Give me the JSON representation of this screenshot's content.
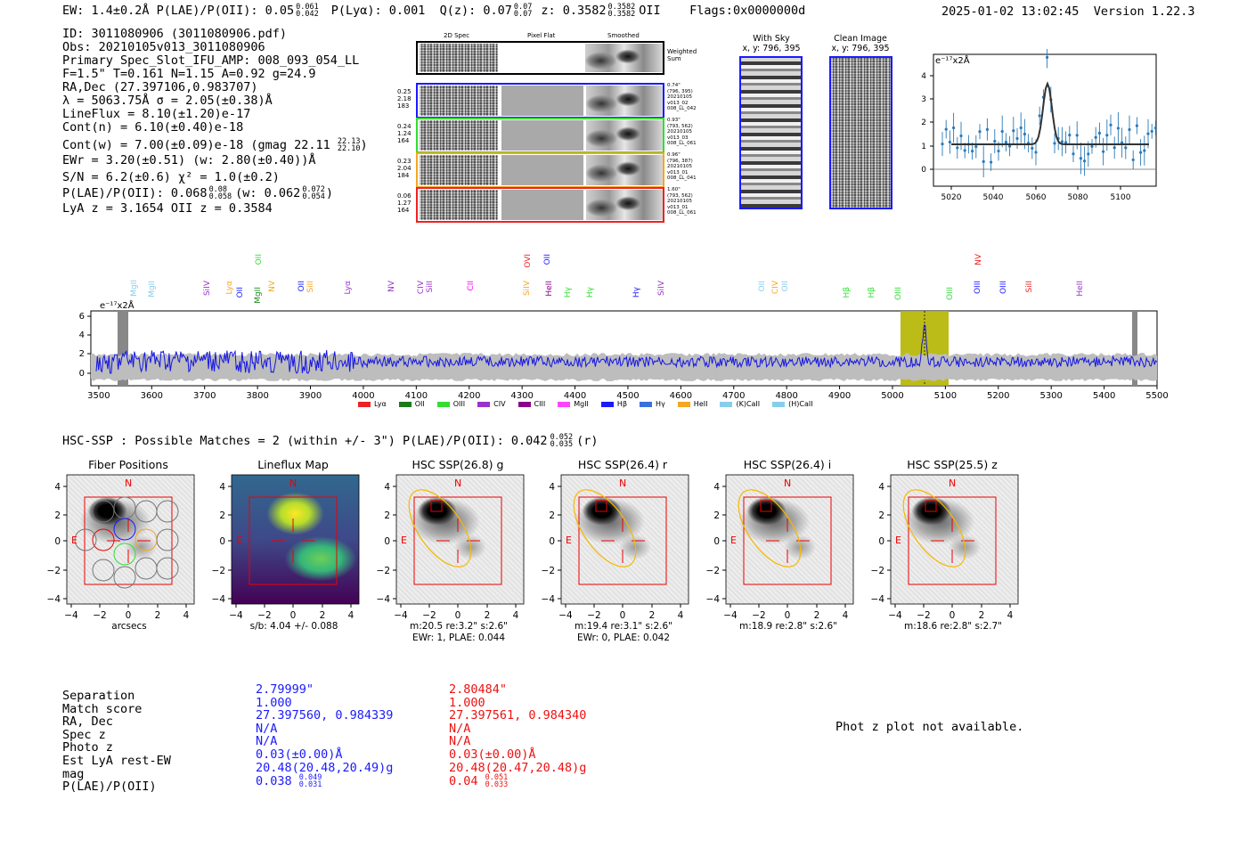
{
  "header": {
    "ew_line": "EW: 1.4±0.2Å  P(LAE)/P(OII): 0.05",
    "ew_sup_hi": "0.061",
    "ew_sup_lo": "0.042",
    "plya": "P(Lyα): 0.001",
    "qz": "Q(z): 0.07",
    "qz_hi": "0.07",
    "qz_lo": "0.07",
    "z": "z: 0.3582",
    "z_hi": "0.3582",
    "z_lo": "0.3582",
    "z_tag": "OII",
    "flags": "Flags:0x0000000d",
    "timestamp": "2025-01-02 13:02:45",
    "version": "Version 1.22.3"
  },
  "info": {
    "lines": [
      "ID: 3011080906 (3011080906.pdf)",
      "Obs: 20210105v013_3011080906",
      "Primary Spec_Slot_IFU_AMP: 008_093_054_LL",
      "F=1.5\"  T=0.161  N=1.15  A=0.92  g=24.9",
      "RA,Dec (27.397106,0.983707)",
      "λ = 5063.75Å  σ = 2.05(±0.38)Å",
      "LineFlux = 8.10(±1.20)e-17",
      "Cont(n) = 6.10(±0.40)e-18"
    ],
    "contw": "Cont(w) = 7.00(±0.09)e-18 (gmag 22.11",
    "contw_hi": "22.13",
    "contw_lo": "22.10",
    "ewr": "EWr = 3.20(±0.51) (w: 2.80(±0.40))Å",
    "sn": "S/N = 6.2(±0.6)  χ² = 1.0(±0.2)",
    "plae": "P(LAE)/P(OII): 0.068",
    "plae_hi": "0.08",
    "plae_lo": "0.058",
    "plae_w": "(w: 0.062",
    "plae_w_hi": "0.072",
    "plae_w_lo": "0.054",
    "lya": "LyA z = 3.1654  OII z = 0.3584"
  },
  "cutouts": {
    "headers": [
      "2D Spec",
      "Pixel Flat",
      "Smoothed"
    ],
    "weighted_sum": "Weighted Sum",
    "rows": [
      {
        "left": [
          "0.25",
          "2.18",
          "183"
        ],
        "right": [
          "0.74\"",
          "(796, 395)",
          "20210105",
          "v013_02",
          "008_LL_042"
        ],
        "color": "#1a1aff"
      },
      {
        "left": [
          "0.24",
          "1.24",
          "164"
        ],
        "right": [
          "0.93\"",
          "(793, 562)",
          "20210105",
          "v013_03",
          "008_LL_061"
        ],
        "color": "#33dd33"
      },
      {
        "left": [
          "0.23",
          "2.04",
          "184"
        ],
        "right": [
          "0.96\"",
          "(796, 387)",
          "20210105",
          "v013_01",
          "008_LL_041"
        ],
        "color": "#f5a623"
      },
      {
        "left": [
          "0.06",
          "1.27",
          "164"
        ],
        "right": [
          "1.60\"",
          "(793, 562)",
          "20210105",
          "v013_01",
          "008_LL_061"
        ],
        "color": "#ee2222"
      }
    ],
    "with_sky": "With Sky",
    "with_sky_xy": "x, y: 796, 395",
    "clean": "Clean Image",
    "clean_xy": "x, y: 796, 395"
  },
  "zoom_plot": {
    "unit": "e⁻¹⁷x2Å",
    "xticks": [
      "5020",
      "5040",
      "5060",
      "5080",
      "5100"
    ],
    "yticks": [
      "4",
      "3",
      "2",
      "1",
      "0"
    ]
  },
  "spectrum": {
    "unit": "e⁻¹⁷x2Å",
    "xticks": [
      "3500",
      "3600",
      "3700",
      "3800",
      "3900",
      "4000",
      "4100",
      "4200",
      "4300",
      "4400",
      "4500",
      "4600",
      "4700",
      "4800",
      "4900",
      "5000",
      "5100",
      "5200",
      "5300",
      "5400",
      "5500"
    ],
    "yticks": [
      "6",
      "4",
      "2",
      "0"
    ],
    "line_labels": [
      {
        "t": "MgII",
        "c": "#87ceeb"
      },
      {
        "t": "MgII",
        "c": "#87ceeb"
      },
      {
        "t": "SiIV",
        "c": "#9932cc"
      },
      {
        "t": "Lyα",
        "c": "#f5a623"
      },
      {
        "t": "OII",
        "c": "#1a1aff"
      },
      {
        "t": "MgII",
        "c": "#228b22"
      },
      {
        "t": "OII",
        "c": "#33dd33"
      },
      {
        "t": "NV",
        "c": "#f5a623"
      },
      {
        "t": "OII",
        "c": "#1a1aff"
      },
      {
        "t": "SiII",
        "c": "#f5a623"
      },
      {
        "t": "Lyα",
        "c": "#9932cc"
      },
      {
        "t": "NV",
        "c": "#9932cc"
      },
      {
        "t": "CIV",
        "c": "#9932cc"
      },
      {
        "t": "SiII",
        "c": "#9932cc"
      },
      {
        "t": "CII",
        "c": "#ff00ff"
      },
      {
        "t": "SiIV",
        "c": "#f5a623"
      },
      {
        "t": "OVI",
        "c": "#ee2222"
      },
      {
        "t": "OII",
        "c": "#1a1aff"
      },
      {
        "t": "HeII",
        "c": "#8b008b"
      },
      {
        "t": "Hγ",
        "c": "#33dd33"
      },
      {
        "t": "Hγ",
        "c": "#33dd33"
      },
      {
        "t": "Hγ",
        "c": "#1a1aff"
      },
      {
        "t": "SiIV",
        "c": "#9932cc"
      },
      {
        "t": "OII",
        "c": "#87ceeb"
      },
      {
        "t": "CIV",
        "c": "#f5a623"
      },
      {
        "t": "OII",
        "c": "#87ceeb"
      },
      {
        "t": "Hβ",
        "c": "#33dd33"
      },
      {
        "t": "Hβ",
        "c": "#33dd33"
      },
      {
        "t": "OIII",
        "c": "#33dd33"
      },
      {
        "t": "OIII",
        "c": "#33dd33"
      },
      {
        "t": "OIII",
        "c": "#1a1aff"
      },
      {
        "t": "NV",
        "c": "#ee2222"
      },
      {
        "t": "OIII",
        "c": "#1a1aff"
      },
      {
        "t": "SiII",
        "c": "#ee2222"
      },
      {
        "t": "HeII",
        "c": "#9932cc"
      }
    ],
    "legend": [
      {
        "t": "Lyα",
        "c": "#ee2222"
      },
      {
        "t": "OII",
        "c": "#1b7a1b"
      },
      {
        "t": "OIII",
        "c": "#33dd33"
      },
      {
        "t": "CIV",
        "c": "#9932cc"
      },
      {
        "t": "CIII",
        "c": "#8b008b"
      },
      {
        "t": "MgII",
        "c": "#ff44ff"
      },
      {
        "t": "Hβ",
        "c": "#1a1aff"
      },
      {
        "t": "Hγ",
        "c": "#3a6fe0"
      },
      {
        "t": "HeII",
        "c": "#f5a623"
      },
      {
        "t": "(K)CaII",
        "c": "#87ceeb"
      },
      {
        "t": "(H)CaII",
        "c": "#87ceeb"
      }
    ]
  },
  "hsc": {
    "summary": "HSC-SSP : Possible Matches = 2 (within +/- 3\")  P(LAE)/P(OII): 0.042",
    "summary_hi": "0.052",
    "summary_lo": "0.035",
    "summary_band": "(r)",
    "panels": [
      {
        "title": "Fiber Positions",
        "cap1": "arcsecs",
        "cap2": ""
      },
      {
        "title": "Lineflux Map",
        "cap1": "s/b: 4.04 +/- 0.088",
        "cap2": ""
      },
      {
        "title": "HSC SSP(26.8) g",
        "cap1": "m:20.5  re:3.2\"  s:2.6\"",
        "cap2": "EWr: 1, PLAE: 0.044"
      },
      {
        "title": "HSC SSP(26.4) r",
        "cap1": "m:19.4  re:3.1\"  s:2.6\"",
        "cap2": "EWr: 0, PLAE: 0.042"
      },
      {
        "title": "HSC SSP(26.4) i",
        "cap1": "m:18.9  re:2.8\"  s:2.6\"",
        "cap2": ""
      },
      {
        "title": "HSC SSP(25.5) z",
        "cap1": "m:18.6  re:2.8\"  s:2.7\"",
        "cap2": ""
      }
    ],
    "yticks": [
      "4",
      "2",
      "0",
      "−2",
      "−4"
    ],
    "xticks": [
      "−4",
      "−2",
      "0",
      "2",
      "4"
    ],
    "north": "N",
    "east": "E"
  },
  "matches": {
    "labels": [
      "Separation",
      "Match score",
      "RA, Dec",
      "Spec z",
      "Photo z",
      "Est LyA rest-EW",
      "mag",
      "P(LAE)/P(OII)"
    ],
    "col1": [
      "2.79999\"",
      "1.000",
      "27.397560, 0.984339",
      "N/A",
      "N/A",
      "0.03(±0.00)Å",
      "20.48(20.48,20.49)g"
    ],
    "col1_plae": "0.038",
    "col1_plae_hi": "0.049",
    "col1_plae_lo": "0.031",
    "col2": [
      "2.80484\"",
      "1.000",
      "27.397561, 0.984340",
      "N/A",
      "N/A",
      "0.03(±0.00)Å",
      "20.48(20.47,20.48)g"
    ],
    "col2_plae": "0.04",
    "col2_plae_hi": "0.051",
    "col2_plae_lo": "0.033",
    "col1_color": "#1a1aff",
    "col2_color": "#ee1111",
    "photz": "Phot z plot not available."
  }
}
